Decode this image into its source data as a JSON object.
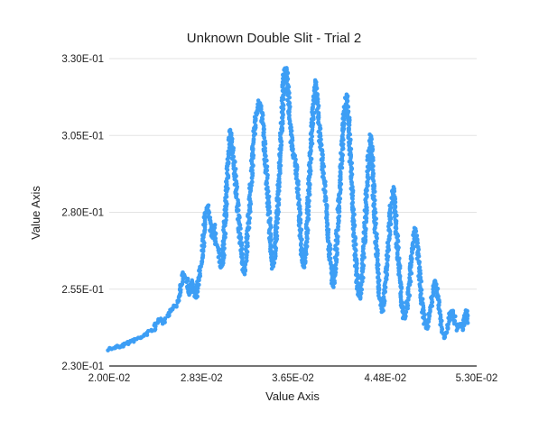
{
  "chart_data": {
    "type": "scatter",
    "title": "Unknown Double Slit - Trial 2",
    "xlabel": "Value Axis",
    "ylabel": "Value Axis",
    "xlim": [
      0.02,
      0.053
    ],
    "ylim": [
      0.23,
      0.33
    ],
    "x_ticks": [
      0.02,
      0.0283,
      0.0365,
      0.0448,
      0.053
    ],
    "x_tick_labels": [
      "2.00E-02",
      "2.83E-02",
      "3.65E-02",
      "4.48E-02",
      "5.30E-02"
    ],
    "y_ticks": [
      0.23,
      0.255,
      0.28,
      0.305,
      0.33
    ],
    "y_tick_labels": [
      "2.30E-01",
      "2.55E-01",
      "2.80E-01",
      "3.05E-01",
      "3.30E-01"
    ],
    "grid": true,
    "legend": "none",
    "series_color": "#3d9ef5",
    "series": [
      {
        "points": [
          [
            0.02,
            0.2355
          ],
          [
            0.0205,
            0.236
          ],
          [
            0.021,
            0.2365
          ],
          [
            0.0215,
            0.2372
          ],
          [
            0.022,
            0.238
          ],
          [
            0.0225,
            0.2388
          ],
          [
            0.023,
            0.2397
          ],
          [
            0.0235,
            0.2408
          ],
          [
            0.024,
            0.242
          ],
          [
            0.0243,
            0.244
          ],
          [
            0.0246,
            0.2458
          ],
          [
            0.0249,
            0.244
          ],
          [
            0.0252,
            0.2465
          ],
          [
            0.0256,
            0.2485
          ],
          [
            0.026,
            0.25
          ],
          [
            0.0263,
            0.2525
          ],
          [
            0.0265,
            0.2575
          ],
          [
            0.0267,
            0.26
          ],
          [
            0.027,
            0.258
          ],
          [
            0.0272,
            0.253
          ],
          [
            0.0274,
            0.258
          ],
          [
            0.0276,
            0.253
          ],
          [
            0.0278,
            0.252
          ],
          [
            0.028,
            0.258
          ],
          [
            0.0282,
            0.262
          ],
          [
            0.0284,
            0.268
          ],
          [
            0.0286,
            0.278
          ],
          [
            0.0288,
            0.282
          ],
          [
            0.029,
            0.278
          ],
          [
            0.0292,
            0.272
          ],
          [
            0.0294,
            0.276
          ],
          [
            0.0296,
            0.27
          ],
          [
            0.0298,
            0.268
          ],
          [
            0.03,
            0.262
          ],
          [
            0.0302,
            0.264
          ],
          [
            0.0303,
            0.27
          ],
          [
            0.0305,
            0.285
          ],
          [
            0.0307,
            0.298
          ],
          [
            0.0309,
            0.307
          ],
          [
            0.0311,
            0.3
          ],
          [
            0.0313,
            0.292
          ],
          [
            0.0315,
            0.284
          ],
          [
            0.0317,
            0.274
          ],
          [
            0.0319,
            0.266
          ],
          [
            0.0321,
            0.26
          ],
          [
            0.0323,
            0.266
          ],
          [
            0.0325,
            0.276
          ],
          [
            0.0327,
            0.288
          ],
          [
            0.0329,
            0.3
          ],
          [
            0.0331,
            0.31
          ],
          [
            0.0333,
            0.314
          ],
          [
            0.0335,
            0.316
          ],
          [
            0.0337,
            0.312
          ],
          [
            0.0339,
            0.304
          ],
          [
            0.0341,
            0.294
          ],
          [
            0.0343,
            0.282
          ],
          [
            0.0345,
            0.27
          ],
          [
            0.0347,
            0.262
          ],
          [
            0.0349,
            0.268
          ],
          [
            0.0351,
            0.28
          ],
          [
            0.0353,
            0.295
          ],
          [
            0.0355,
            0.31
          ],
          [
            0.0357,
            0.325
          ],
          [
            0.0359,
            0.327
          ],
          [
            0.0361,
            0.318
          ],
          [
            0.0363,
            0.306
          ],
          [
            0.0365,
            0.298
          ],
          [
            0.0367,
            0.298
          ],
          [
            0.0369,
            0.29
          ],
          [
            0.0371,
            0.278
          ],
          [
            0.0373,
            0.266
          ],
          [
            0.0375,
            0.262
          ],
          [
            0.0377,
            0.27
          ],
          [
            0.0379,
            0.285
          ],
          [
            0.0381,
            0.3
          ],
          [
            0.0383,
            0.312
          ],
          [
            0.0385,
            0.323
          ],
          [
            0.0387,
            0.315
          ],
          [
            0.0389,
            0.305
          ],
          [
            0.0391,
            0.298
          ],
          [
            0.0393,
            0.29
          ],
          [
            0.0395,
            0.282
          ],
          [
            0.0397,
            0.272
          ],
          [
            0.0399,
            0.262
          ],
          [
            0.0401,
            0.256
          ],
          [
            0.0403,
            0.262
          ],
          [
            0.0405,
            0.275
          ],
          [
            0.0407,
            0.288
          ],
          [
            0.0409,
            0.3
          ],
          [
            0.0411,
            0.312
          ],
          [
            0.0413,
            0.318
          ],
          [
            0.0415,
            0.31
          ],
          [
            0.0417,
            0.295
          ],
          [
            0.0419,
            0.28
          ],
          [
            0.0421,
            0.266
          ],
          [
            0.0423,
            0.256
          ],
          [
            0.0425,
            0.252
          ],
          [
            0.0427,
            0.258
          ],
          [
            0.0429,
            0.27
          ],
          [
            0.0431,
            0.285
          ],
          [
            0.0433,
            0.298
          ],
          [
            0.0435,
            0.305
          ],
          [
            0.0437,
            0.29
          ],
          [
            0.0439,
            0.275
          ],
          [
            0.0441,
            0.262
          ],
          [
            0.0443,
            0.252
          ],
          [
            0.0445,
            0.248
          ],
          [
            0.0447,
            0.252
          ],
          [
            0.0449,
            0.26
          ],
          [
            0.0451,
            0.272
          ],
          [
            0.0453,
            0.282
          ],
          [
            0.0455,
            0.288
          ],
          [
            0.0457,
            0.28
          ],
          [
            0.0459,
            0.268
          ],
          [
            0.0461,
            0.258
          ],
          [
            0.0463,
            0.25
          ],
          [
            0.0465,
            0.245
          ],
          [
            0.0467,
            0.248
          ],
          [
            0.0469,
            0.254
          ],
          [
            0.0471,
            0.262
          ],
          [
            0.0473,
            0.27
          ],
          [
            0.0475,
            0.275
          ],
          [
            0.0477,
            0.268
          ],
          [
            0.0479,
            0.258
          ],
          [
            0.0481,
            0.25
          ],
          [
            0.0483,
            0.245
          ],
          [
            0.0485,
            0.242
          ],
          [
            0.0487,
            0.245
          ],
          [
            0.0489,
            0.25
          ],
          [
            0.0491,
            0.255
          ],
          [
            0.0493,
            0.258
          ],
          [
            0.0495,
            0.253
          ],
          [
            0.0497,
            0.247
          ],
          [
            0.0499,
            0.242
          ],
          [
            0.0501,
            0.239
          ],
          [
            0.0503,
            0.241
          ],
          [
            0.0505,
            0.245
          ],
          [
            0.0507,
            0.248
          ],
          [
            0.0509,
            0.247
          ],
          [
            0.0511,
            0.244
          ],
          [
            0.0513,
            0.242
          ],
          [
            0.0515,
            0.244
          ],
          [
            0.0517,
            0.242
          ],
          [
            0.0519,
            0.245
          ],
          [
            0.0521,
            0.248
          ],
          [
            0.0522,
            0.244
          ]
        ]
      }
    ]
  }
}
